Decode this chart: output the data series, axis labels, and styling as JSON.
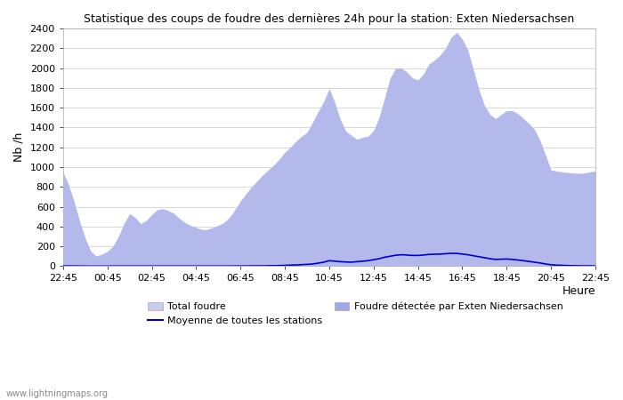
{
  "title": "Statistique des coups de foudre des dernières 24h pour la station: Exten Niedersachsen",
  "ylabel": "Nb /h",
  "xlabel": "Heure",
  "watermark": "www.lightningmaps.org",
  "ylim": [
    0,
    2400
  ],
  "yticks": [
    0,
    200,
    400,
    600,
    800,
    1000,
    1200,
    1400,
    1600,
    1800,
    2000,
    2200,
    2400
  ],
  "xtick_labels": [
    "22:45",
    "00:45",
    "02:45",
    "04:45",
    "06:45",
    "08:45",
    "10:45",
    "12:45",
    "14:45",
    "16:45",
    "18:45",
    "20:45",
    "22:45"
  ],
  "legend_labels": [
    "Total foudre",
    "Moyenne de toutes les stations",
    "Foudre détectée par Exten Niedersachsen"
  ],
  "total_color": "#c8ccf0",
  "detected_color": "#a0a8e8",
  "moyenne_color": "#0000cc",
  "background_color": "#ffffff",
  "grid_color": "#c8c8c8",
  "total_values": [
    950,
    820,
    650,
    450,
    280,
    150,
    100,
    120,
    150,
    200,
    300,
    430,
    530,
    490,
    430,
    460,
    520,
    570,
    580,
    560,
    530,
    480,
    440,
    410,
    390,
    370,
    370,
    390,
    410,
    440,
    490,
    570,
    660,
    730,
    800,
    860,
    920,
    970,
    1020,
    1080,
    1150,
    1200,
    1260,
    1310,
    1350,
    1450,
    1560,
    1660,
    1790,
    1650,
    1480,
    1360,
    1320,
    1280,
    1300,
    1310,
    1370,
    1500,
    1700,
    1900,
    2000,
    2000,
    1960,
    1900,
    1880,
    1940,
    2040,
    2080,
    2130,
    2200,
    2310,
    2360,
    2290,
    2180,
    1980,
    1780,
    1620,
    1530,
    1490,
    1530,
    1570,
    1570,
    1540,
    1490,
    1440,
    1380,
    1270,
    1120,
    970,
    960,
    950,
    945,
    940,
    935,
    940,
    950,
    960
  ],
  "detected_values": [
    950,
    820,
    650,
    450,
    280,
    150,
    100,
    120,
    150,
    200,
    300,
    430,
    530,
    490,
    430,
    460,
    520,
    570,
    580,
    560,
    530,
    480,
    440,
    410,
    390,
    370,
    370,
    390,
    410,
    440,
    490,
    570,
    660,
    730,
    800,
    860,
    920,
    970,
    1020,
    1080,
    1150,
    1200,
    1260,
    1310,
    1350,
    1450,
    1560,
    1660,
    1790,
    1650,
    1480,
    1360,
    1320,
    1280,
    1300,
    1310,
    1370,
    1500,
    1700,
    1900,
    2000,
    2000,
    1960,
    1900,
    1880,
    1940,
    2040,
    2080,
    2130,
    2200,
    2310,
    2360,
    2290,
    2180,
    1980,
    1780,
    1620,
    1530,
    1490,
    1530,
    1570,
    1570,
    1540,
    1490,
    1440,
    1380,
    1270,
    1120,
    970,
    960,
    950,
    945,
    940,
    935,
    940,
    950,
    960
  ],
  "moyenne_values": [
    3,
    2,
    2,
    1,
    1,
    0,
    0,
    0,
    0,
    1,
    1,
    1,
    1,
    1,
    1,
    1,
    1,
    1,
    1,
    1,
    1,
    1,
    1,
    1,
    1,
    1,
    1,
    1,
    1,
    1,
    1,
    2,
    2,
    2,
    3,
    3,
    3,
    4,
    5,
    6,
    8,
    10,
    12,
    15,
    18,
    22,
    30,
    40,
    55,
    50,
    45,
    42,
    40,
    45,
    50,
    55,
    65,
    75,
    90,
    100,
    110,
    115,
    112,
    108,
    108,
    112,
    118,
    120,
    122,
    125,
    130,
    128,
    122,
    115,
    105,
    95,
    85,
    75,
    68,
    70,
    72,
    68,
    62,
    55,
    48,
    40,
    32,
    22,
    14,
    10,
    8,
    6,
    5,
    4,
    3,
    3,
    2
  ]
}
